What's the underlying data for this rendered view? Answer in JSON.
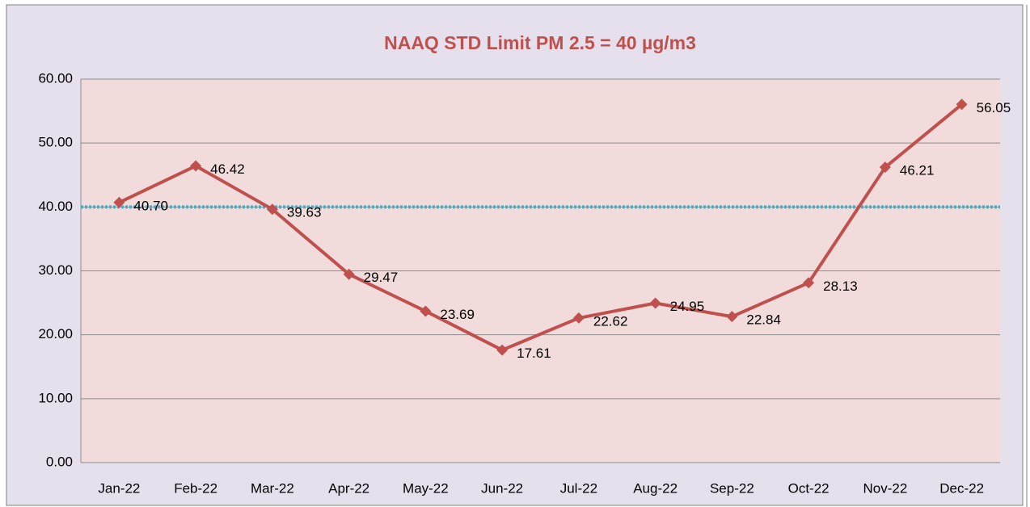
{
  "chart_data": {
    "type": "line",
    "title": "NAAQ STD Limit PM 2.5 = 40 µg/m3",
    "categories": [
      "Jan-22",
      "Feb-22",
      "Mar-22",
      "Apr-22",
      "May-22",
      "Jun-22",
      "Jul-22",
      "Aug-22",
      "Sep-22",
      "Oct-22",
      "Nov-22",
      "Dec-22"
    ],
    "values": [
      40.7,
      46.42,
      39.63,
      29.47,
      23.69,
      17.61,
      22.62,
      24.95,
      22.84,
      28.13,
      46.21,
      56.05
    ],
    "value_labels": [
      "40.70",
      "46.42",
      "39.63",
      "29.47",
      "23.69",
      "17.61",
      "22.62",
      "24.95",
      "22.84",
      "28.13",
      "46.21",
      "56.05"
    ],
    "color": "#c0504d",
    "ylim": [
      0,
      60
    ],
    "yticks": [
      {
        "value": 0,
        "label": "0.00"
      },
      {
        "value": 10,
        "label": "10.00"
      },
      {
        "value": 20,
        "label": "20.00"
      },
      {
        "value": 30,
        "label": "30.00"
      },
      {
        "value": 40,
        "label": "40.00"
      },
      {
        "value": 50,
        "label": "50.00"
      },
      {
        "value": 60,
        "label": "60.00"
      }
    ],
    "grid": true,
    "reference_line": {
      "value": 40,
      "color": "#4bacc6"
    }
  }
}
